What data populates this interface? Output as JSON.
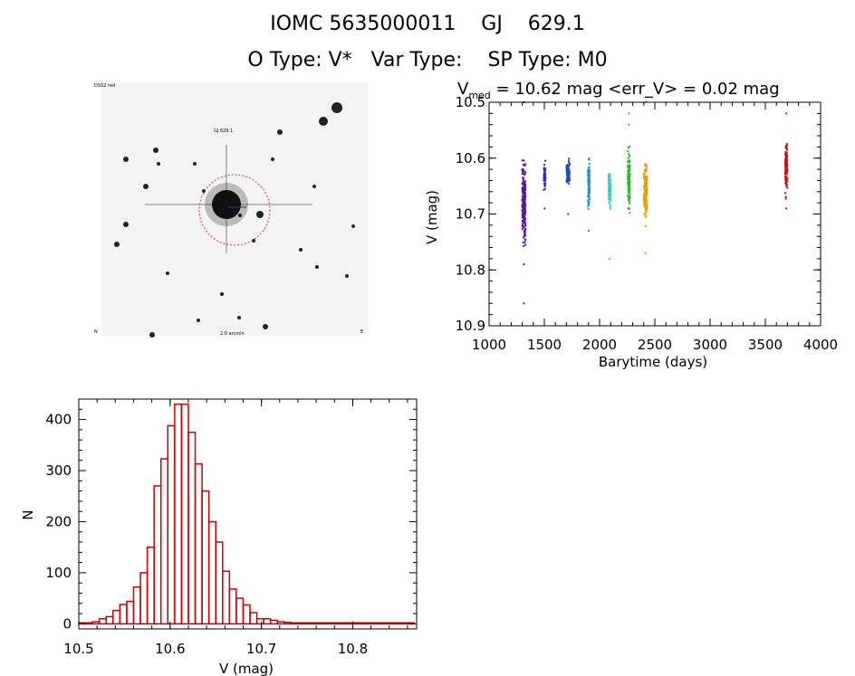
{
  "header": {
    "line1": "IOMC 5635000011    GJ    629.1",
    "line2": "O Type: V*   Var Type:    SP Type: M0"
  },
  "sky_image": {
    "label_tl": "DSS2 red",
    "label_center": "GJ 629.1",
    "label_bottom": "2.0 arcmin",
    "label_bl": "N",
    "label_br": "E"
  },
  "chart_data": [
    {
      "type": "scatter",
      "title_prefix": "V",
      "title_sub": "med",
      "title_rest": " = 10.62 mag <err_V> = 0.02 mag",
      "xlabel": "Barytime (days)",
      "ylabel": "V (mag)",
      "xlim": [
        1000,
        4000
      ],
      "ylim": [
        10.9,
        10.5
      ],
      "xticks": [
        1000,
        1500,
        2000,
        2500,
        3000,
        3500,
        4000
      ],
      "yticks": [
        10.5,
        10.6,
        10.7,
        10.8,
        10.9
      ],
      "groups": [
        {
          "x_min": 1300,
          "x_max": 1330,
          "y_low": 10.58,
          "y_high": 10.78,
          "y_outliers": [
            10.5,
            10.79,
            10.86
          ],
          "color": "#5a1a8a",
          "n": 220
        },
        {
          "x_min": 1495,
          "x_max": 1510,
          "y_low": 10.59,
          "y_high": 10.67,
          "y_outliers": [
            10.69
          ],
          "color": "#3a2aa8",
          "n": 60
        },
        {
          "x_min": 1700,
          "x_max": 1730,
          "y_low": 10.59,
          "y_high": 10.66,
          "y_outliers": [
            10.7
          ],
          "color": "#1a4ad0",
          "n": 80
        },
        {
          "x_min": 1895,
          "x_max": 1910,
          "y_low": 10.58,
          "y_high": 10.72,
          "y_outliers": [
            10.73
          ],
          "color": "#1a90d8",
          "n": 90
        },
        {
          "x_min": 2080,
          "x_max": 2100,
          "y_low": 10.59,
          "y_high": 10.71,
          "y_outliers": [
            10.78
          ],
          "color": "#30d0c8",
          "n": 90
        },
        {
          "x_min": 2255,
          "x_max": 2275,
          "y_low": 10.56,
          "y_high": 10.72,
          "y_outliers": [
            10.52,
            10.54
          ],
          "color": "#20c020",
          "n": 140
        },
        {
          "x_min": 2400,
          "x_max": 2430,
          "y_low": 10.58,
          "y_high": 10.74,
          "y_outliers": [
            10.5,
            10.77
          ],
          "color": "#e0a000",
          "n": 170
        },
        {
          "x_min": 3680,
          "x_max": 3700,
          "y_low": 10.55,
          "y_high": 10.68,
          "y_outliers": [
            10.52,
            10.69
          ],
          "color": "#d01010",
          "n": 150
        }
      ]
    },
    {
      "type": "bar",
      "xlabel": "V (mag)",
      "ylabel": "N",
      "xlim": [
        10.5,
        10.87
      ],
      "ylim": [
        -10,
        440
      ],
      "xticks": [
        10.5,
        10.6,
        10.7,
        10.8
      ],
      "yticks": [
        0,
        100,
        200,
        300,
        400
      ],
      "bin_width": 0.0075,
      "bin_start": 10.5,
      "counts": [
        2,
        2,
        4,
        10,
        14,
        26,
        38,
        44,
        72,
        100,
        150,
        270,
        323,
        388,
        430,
        430,
        375,
        313,
        260,
        200,
        160,
        103,
        68,
        50,
        37,
        22,
        10,
        10,
        7,
        4,
        3,
        2,
        2,
        2,
        2,
        2,
        2,
        2,
        2,
        2,
        2,
        2,
        2,
        2,
        2,
        2,
        2,
        2,
        2
      ],
      "color": "#cc0000"
    }
  ]
}
